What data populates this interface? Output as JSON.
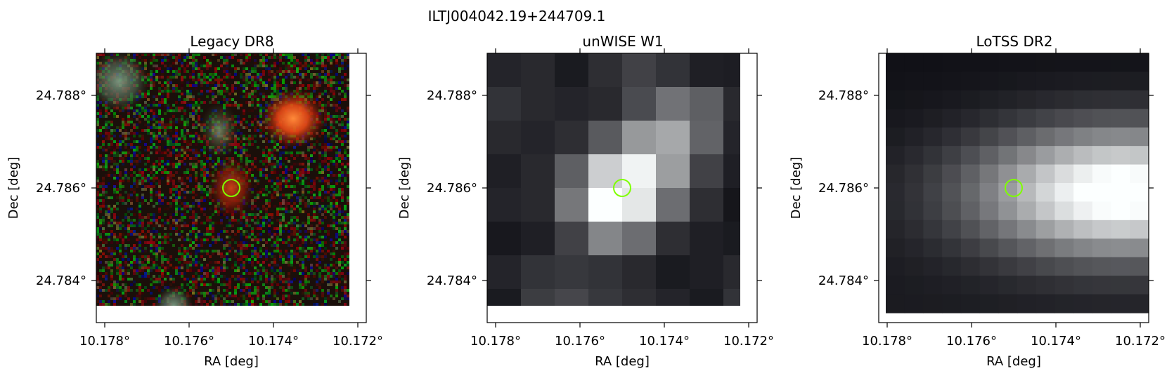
{
  "figure": {
    "title": "ILTJ004042.19+244709.1"
  },
  "panels": [
    {
      "title": "Legacy DR8",
      "xlabel": "RA [deg]",
      "ylabel": "Dec [deg]",
      "xticks": [
        "10.178°",
        "10.176°",
        "10.174°",
        "10.172°"
      ],
      "yticks": [
        "24.788°",
        "24.786°",
        "24.784°"
      ],
      "image": "optical RGB cutout, noisy background with red/green/orange sources"
    },
    {
      "title": "unWISE W1",
      "xlabel": "RA [deg]",
      "ylabel": "Dec [deg]",
      "xticks": [
        "10.178°",
        "10.176°",
        "10.174°",
        "10.172°"
      ],
      "yticks": [
        "24.788°",
        "24.786°",
        "24.784°"
      ],
      "image": "infrared grayscale pixelated cutout, bright central source"
    },
    {
      "title": "LoTSS DR2",
      "xlabel": "RA [deg]",
      "ylabel": "Dec [deg]",
      "xticks": [
        "10.178°",
        "10.176°",
        "10.174°",
        "10.172°"
      ],
      "yticks": [
        "24.788°",
        "24.786°",
        "24.784°"
      ],
      "image": "radio grayscale cutout, bright emission extending to the right"
    }
  ],
  "marker": {
    "color": "#7fff00",
    "shape": "circle"
  }
}
